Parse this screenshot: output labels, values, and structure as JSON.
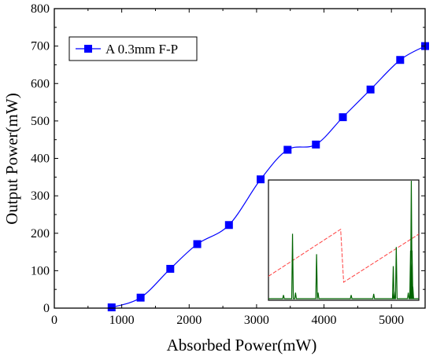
{
  "chart_data": {
    "type": "line",
    "xlabel": "Absorbed Power(mW)",
    "ylabel": "Output Power(mW)",
    "xlim": [
      0,
      5500
    ],
    "ylim": [
      0,
      800
    ],
    "xticks": [
      "0",
      "1000",
      "2000",
      "3000",
      "4000",
      "5000"
    ],
    "yticks": [
      "0",
      "100",
      "200",
      "300",
      "400",
      "500",
      "600",
      "700",
      "800"
    ],
    "legend": "top-left",
    "series": [
      {
        "name": "A 0.3mm F-P",
        "color": "#0000ff",
        "marker": "square",
        "x": [
          850,
          1280,
          1720,
          2120,
          2590,
          3060,
          3460,
          3880,
          4280,
          4690,
          5130,
          5500
        ],
        "y": [
          2,
          28,
          105,
          171,
          222,
          344,
          423,
          437,
          510,
          584,
          663,
          700
        ]
      }
    ],
    "inset": {
      "type": "line",
      "description_colors": {
        "spectrum": "#006400",
        "ramp": "#ff4040"
      }
    }
  }
}
